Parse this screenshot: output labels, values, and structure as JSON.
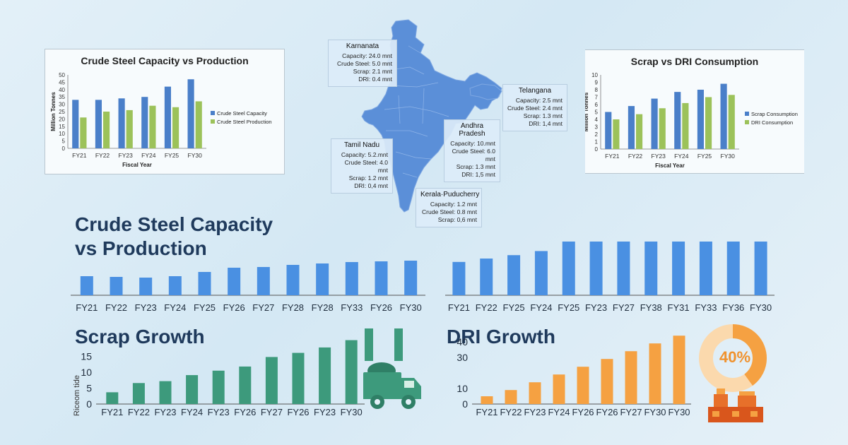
{
  "colors": {
    "capacity": "#4a7fc9",
    "production": "#9cc25a",
    "scrap_small": "#4a7fc9",
    "dri_small": "#9cc25a",
    "big_blue": "#4a90e2",
    "scrap_green": "#3d9a7c",
    "dri_orange": "#f5a142",
    "map": "#5b8fd8",
    "title": "#1f3a5c"
  },
  "map": {
    "callouts": [
      {
        "name": "Karnanata",
        "lines": [
          "Capacity: 24.0 mnt",
          "Crude Steel: 5.0 mnt",
          "Scrap: 2.1 mnt",
          "DRI: 0.4 mnt"
        ]
      },
      {
        "name": "Telangana",
        "lines": [
          "Capacity: 2.5 mnt",
          "Crude Steel: 2.4 mnt",
          "Scrap: 1.3 mnt",
          "DRI: 1,4 mnt"
        ]
      },
      {
        "name": "Andhra Pradesh",
        "lines": [
          "Capacity: 10.mnt",
          "Crude Steel: 6.0 mnt",
          "Scrap: 1.3 mnt",
          "DRI: 1,5 mnt"
        ]
      },
      {
        "name": "Tamil Nadu",
        "lines": [
          "Capacity: 5.2.mnt",
          "Crude Steel: 4.0 mnt",
          "Scrap: 1.2 mnt",
          "DRI: 0,4 mnt"
        ]
      },
      {
        "name": "Kerala·Puducherry",
        "lines": [
          "Capacity: 1.2 mnt",
          "Crude Steel: 0.8 mnt",
          "Scrap: 0,6 mnt"
        ]
      }
    ]
  },
  "icons": {
    "truck": "truck-icon",
    "donut": "donut-chart-icon",
    "plant": "factory-icon"
  },
  "titles": {
    "main_line1": "Crude Steel Capacity",
    "main_line2": "vs Production",
    "scrap": "Scrap Growth",
    "dri": "DRI Growth"
  },
  "dri_share": "40%",
  "chart_data": [
    {
      "id": "cap_vs_prod_small",
      "type": "bar",
      "title": "Crude Steel Capacity vs Production",
      "xlabel": "Fiscal Year",
      "ylabel": "Million Tonnes",
      "categories": [
        "FY21",
        "FY22",
        "FY23",
        "FY24",
        "FY25",
        "FY30"
      ],
      "ylim": [
        0,
        50
      ],
      "yticks": [
        0,
        5,
        10,
        15,
        20,
        25,
        30,
        35,
        40,
        45,
        50
      ],
      "grid": false,
      "legend_position": "right",
      "series": [
        {
          "name": "Crude Steel Capacity",
          "values": [
            33,
            33,
            34,
            35,
            42,
            47
          ]
        },
        {
          "name": "Crude Steel Production",
          "values": [
            21,
            25,
            26,
            29,
            28,
            32
          ]
        }
      ]
    },
    {
      "id": "scrap_vs_dri_small",
      "type": "bar",
      "title": "Scrap vs DRI Consumption",
      "xlabel": "Fiscal Year",
      "ylabel": "Million Tonnes",
      "categories": [
        "FY21",
        "FY22",
        "FY23",
        "FY24",
        "FY25",
        "FY30"
      ],
      "ylim": [
        0,
        10
      ],
      "yticks": [
        0,
        1,
        2,
        3,
        4,
        5,
        6,
        7,
        8,
        9,
        10
      ],
      "grid": false,
      "legend_position": "right",
      "series": [
        {
          "name": "Scrap Consumption",
          "values": [
            5.0,
            5.8,
            6.8,
            7.7,
            8.0,
            8.8
          ]
        },
        {
          "name": "DRI Consumption",
          "values": [
            4.0,
            4.7,
            5.5,
            6.2,
            7.0,
            7.3
          ]
        }
      ]
    },
    {
      "id": "big_left",
      "type": "bar",
      "categories": [
        "FY21",
        "FY22",
        "FY23",
        "FY24",
        "FY25",
        "FY26",
        "FY27",
        "FY28",
        "FY28",
        "FY33",
        "FY26",
        "FY30"
      ],
      "values": [
        27,
        26,
        25,
        27,
        33,
        39,
        40,
        43,
        45,
        47,
        48,
        49
      ],
      "ylim": [
        0,
        100
      ]
    },
    {
      "id": "big_right",
      "type": "bar",
      "categories": [
        "FY21",
        "FY22",
        "FY25",
        "FY24",
        "FY25",
        "FY23",
        "FY27",
        "FY38",
        "FY31",
        "FY33",
        "FY36",
        "FY30"
      ],
      "values": [
        49,
        54,
        59,
        65,
        79,
        79,
        79,
        79,
        79,
        79,
        79,
        79
      ],
      "ylim": [
        0,
        80
      ]
    },
    {
      "id": "scrap_growth",
      "type": "bar",
      "title": "Scrap Growth",
      "ylabel": "Riceom tide",
      "categories": [
        "FY21",
        "FY22",
        "FY23",
        "FY24",
        "FY23",
        "FY26",
        "FY27",
        "FY26",
        "FY23",
        "FY30"
      ],
      "values": [
        3.7,
        6.6,
        7.2,
        9.1,
        10.5,
        11.8,
        14.8,
        16.1,
        17.8,
        20.1
      ],
      "ylim": [
        0,
        22
      ],
      "yticks": [
        0,
        5,
        10,
        15
      ]
    },
    {
      "id": "dri_growth",
      "type": "bar",
      "title": "DRI Growth",
      "categories": [
        "FY21",
        "FY22",
        "FY23",
        "FY24",
        "FY26",
        "FY26",
        "FY27",
        "FY30",
        "FY30"
      ],
      "values": [
        5,
        9,
        14,
        19,
        24,
        29,
        34,
        39,
        44
      ],
      "ylim": [
        0,
        50
      ],
      "yticks": [
        0,
        10,
        30,
        40
      ]
    }
  ]
}
